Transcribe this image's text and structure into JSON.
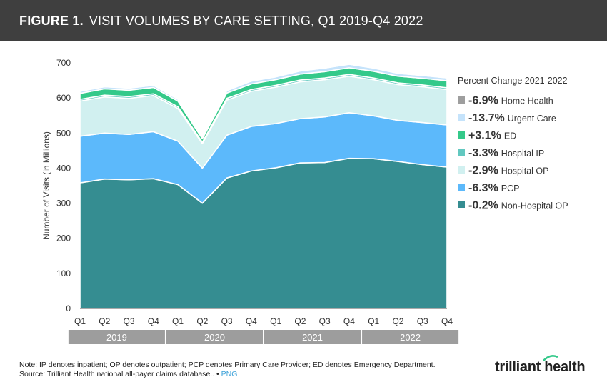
{
  "header": {
    "figure_label": "FIGURE 1.",
    "title": "VISIT VOLUMES BY CARE SETTING, Q1 2019-Q4 2022"
  },
  "chart_data": {
    "type": "area",
    "stacked": true,
    "ylabel": "Number of Visits (in Millions)",
    "ylim": [
      0,
      700
    ],
    "yticks": [
      0,
      100,
      200,
      300,
      400,
      500,
      600,
      700
    ],
    "x": [
      "Q1",
      "Q2",
      "Q3",
      "Q4",
      "Q1",
      "Q2",
      "Q3",
      "Q4",
      "Q1",
      "Q2",
      "Q3",
      "Q4",
      "Q1",
      "Q2",
      "Q3",
      "Q4"
    ],
    "year_groups": [
      {
        "label": "2019",
        "count": 4
      },
      {
        "label": "2020",
        "count": 4
      },
      {
        "label": "2021",
        "count": 4
      },
      {
        "label": "2022",
        "count": 4
      }
    ],
    "series": [
      {
        "name": "Non-Hospital OP",
        "color": "#358d91",
        "values": [
          358,
          369,
          367,
          370,
          353,
          300,
          372,
          392,
          401,
          415,
          416,
          428,
          427,
          419,
          410,
          403
        ]
      },
      {
        "name": "PCP",
        "color": "#5cb9fb",
        "values": [
          133,
          131,
          129,
          134,
          124,
          100,
          122,
          127,
          126,
          126,
          130,
          130,
          122,
          117,
          120,
          120
        ]
      },
      {
        "name": "Hospital OP",
        "color": "#d1f0f0",
        "values": [
          100,
          103,
          103,
          103,
          93,
          70,
          100,
          100,
          104,
          105,
          106,
          104,
          103,
          102,
          102,
          101
        ]
      },
      {
        "name": "Hospital IP",
        "color": "#62c8c0",
        "values": [
          5,
          5,
          5,
          5,
          5,
          4,
          5,
          5,
          5,
          5,
          5,
          5,
          5,
          5,
          5,
          5
        ]
      },
      {
        "name": "ED",
        "color": "#34c98a",
        "values": [
          17,
          18,
          18,
          18,
          16,
          10,
          15,
          16,
          16,
          17,
          18,
          19,
          19,
          19,
          19,
          20
        ]
      },
      {
        "name": "Urgent Care",
        "color": "#c5e3fb",
        "values": [
          6,
          6,
          6,
          6,
          5,
          4,
          7,
          8,
          8,
          9,
          10,
          10,
          9,
          8,
          8,
          8
        ]
      },
      {
        "name": "Home Health",
        "color": "#9e9e9e",
        "values": [
          1,
          1,
          1,
          1,
          1,
          1,
          1,
          1,
          1,
          1,
          1,
          1,
          1,
          1,
          1,
          1
        ]
      }
    ],
    "legend": {
      "title": "Percent Change 2021-2022",
      "position": "right",
      "entries": [
        {
          "pct": "-6.9%",
          "name": "Home Health",
          "color": "#9e9e9e"
        },
        {
          "pct": "-13.7%",
          "name": "Urgent Care",
          "color": "#c5e3fb"
        },
        {
          "pct": "+3.1%",
          "name": "ED",
          "color": "#34c98a"
        },
        {
          "pct": "-3.3%",
          "name": "Hospital IP",
          "color": "#62c8c0"
        },
        {
          "pct": "-2.9%",
          "name": "Hospital OP",
          "color": "#d1f0f0"
        },
        {
          "pct": "-6.3%",
          "name": "PCP",
          "color": "#5cb9fb"
        },
        {
          "pct": "-0.2%",
          "name": "Non-Hospital OP",
          "color": "#358d91"
        }
      ]
    }
  },
  "footer": {
    "note": "Note: IP denotes inpatient; OP denotes outpatient; PCP denotes Primary Care Provider; ED denotes Emergency Department.",
    "source": "Source: Trilliant Health national all-payer claims database.. •",
    "png_label": "PNG",
    "logo": "trilliant health"
  }
}
